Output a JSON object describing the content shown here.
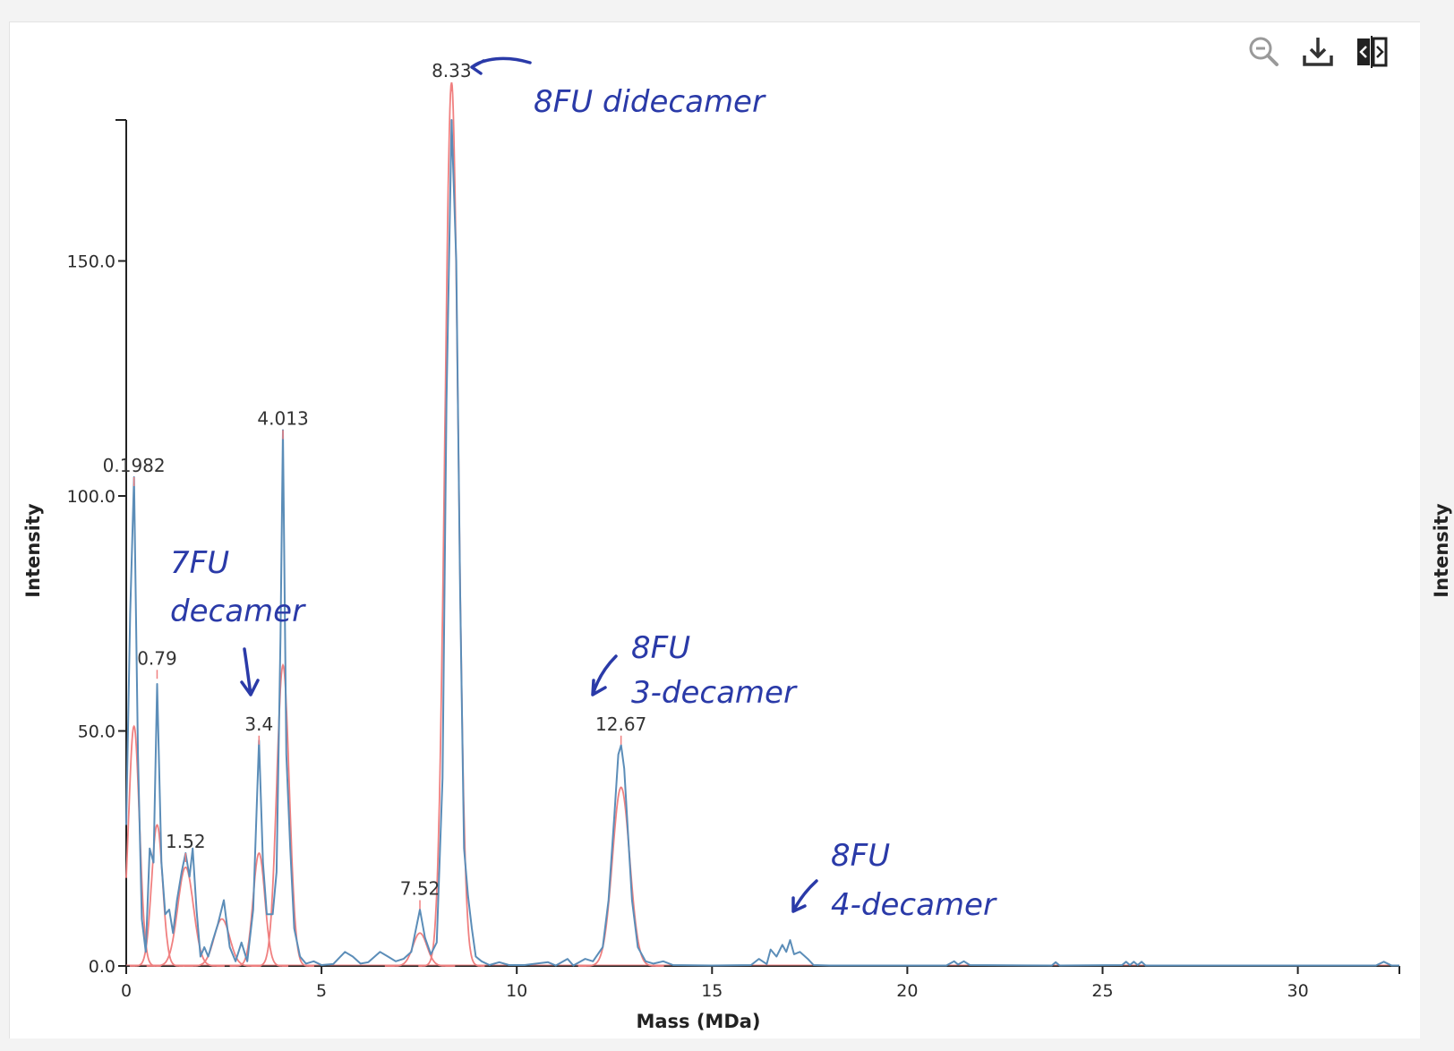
{
  "toolbar": {
    "icons": [
      "zoom-out-icon",
      "download-icon",
      "split-view-icon"
    ]
  },
  "colors": {
    "measured": "#5b8db8",
    "fitted": "#f08080",
    "annotation": "#2a3aa8",
    "axis": "#222222"
  },
  "chart_data": {
    "type": "line",
    "xlabel": "Mass (MDa)",
    "ylabel": "Intensity",
    "right_axis_label": "Intensity",
    "xlim": [
      0,
      32.6
    ],
    "ylim": [
      0,
      180
    ],
    "x_ticks": [
      0,
      5,
      10,
      15,
      20,
      25,
      30
    ],
    "y_ticks": [
      0.0,
      50.0,
      100.0,
      150.0
    ],
    "y_tick_labels": [
      "0.0",
      "50.0",
      "100.0",
      "150.0"
    ],
    "peak_labels": [
      {
        "x": 0.1982,
        "y": 104,
        "text": "0.1982"
      },
      {
        "x": 0.79,
        "y": 63,
        "text": "0.79"
      },
      {
        "x": 1.52,
        "y": 24,
        "text": "1.52"
      },
      {
        "x": 3.4,
        "y": 49,
        "text": "3.4"
      },
      {
        "x": 4.013,
        "y": 114,
        "text": "4.013"
      },
      {
        "x": 7.52,
        "y": 14,
        "text": "7.52"
      },
      {
        "x": 8.33,
        "y": 188,
        "text": "8.33"
      },
      {
        "x": 12.67,
        "y": 49,
        "text": "12.67"
      }
    ],
    "fitted_peaks": [
      {
        "center": 0.1982,
        "height": 51,
        "sigma": 0.14
      },
      {
        "center": 0.79,
        "height": 30,
        "sigma": 0.14
      },
      {
        "center": 1.52,
        "height": 21,
        "sigma": 0.2
      },
      {
        "center": 2.45,
        "height": 10,
        "sigma": 0.2
      },
      {
        "center": 3.4,
        "height": 24,
        "sigma": 0.15
      },
      {
        "center": 4.013,
        "height": 64,
        "sigma": 0.16
      },
      {
        "center": 7.52,
        "height": 7,
        "sigma": 0.18
      },
      {
        "center": 8.33,
        "height": 188,
        "sigma": 0.17
      },
      {
        "center": 12.67,
        "height": 38,
        "sigma": 0.22
      }
    ],
    "series": [
      {
        "name": "",
        "points": [
          [
            0,
            30
          ],
          [
            0.1,
            75
          ],
          [
            0.2,
            104
          ],
          [
            0.3,
            45
          ],
          [
            0.4,
            10
          ],
          [
            0.5,
            3
          ],
          [
            0.6,
            25
          ],
          [
            0.7,
            22
          ],
          [
            0.79,
            60
          ],
          [
            0.9,
            22
          ],
          [
            1.0,
            11
          ],
          [
            1.1,
            12
          ],
          [
            1.2,
            7
          ],
          [
            1.3,
            14
          ],
          [
            1.42,
            20
          ],
          [
            1.52,
            24
          ],
          [
            1.62,
            19
          ],
          [
            1.7,
            25
          ],
          [
            1.8,
            12
          ],
          [
            1.9,
            2
          ],
          [
            2.0,
            4
          ],
          [
            2.1,
            2
          ],
          [
            2.2,
            5
          ],
          [
            2.35,
            9
          ],
          [
            2.5,
            14
          ],
          [
            2.65,
            4
          ],
          [
            2.8,
            1
          ],
          [
            2.95,
            5
          ],
          [
            3.1,
            1
          ],
          [
            3.25,
            12
          ],
          [
            3.4,
            48
          ],
          [
            3.5,
            22
          ],
          [
            3.6,
            11
          ],
          [
            3.75,
            11
          ],
          [
            3.85,
            20
          ],
          [
            3.95,
            70
          ],
          [
            4.013,
            114
          ],
          [
            4.1,
            45
          ],
          [
            4.2,
            25
          ],
          [
            4.3,
            8
          ],
          [
            4.45,
            2
          ],
          [
            4.6,
            0.5
          ],
          [
            4.8,
            1
          ],
          [
            5.0,
            0.2
          ],
          [
            5.3,
            0.4
          ],
          [
            5.6,
            3
          ],
          [
            5.8,
            2
          ],
          [
            6.0,
            0.5
          ],
          [
            6.2,
            0.8
          ],
          [
            6.5,
            3
          ],
          [
            6.7,
            2
          ],
          [
            6.9,
            1
          ],
          [
            7.1,
            1.5
          ],
          [
            7.3,
            3
          ],
          [
            7.52,
            12
          ],
          [
            7.65,
            6
          ],
          [
            7.8,
            2.5
          ],
          [
            7.95,
            5
          ],
          [
            8.1,
            40
          ],
          [
            8.2,
            120
          ],
          [
            8.33,
            181
          ],
          [
            8.45,
            150
          ],
          [
            8.55,
            80
          ],
          [
            8.65,
            25
          ],
          [
            8.75,
            15
          ],
          [
            8.85,
            8
          ],
          [
            8.95,
            2
          ],
          [
            9.1,
            1
          ],
          [
            9.3,
            0.2
          ],
          [
            9.55,
            0.8
          ],
          [
            9.8,
            0.2
          ],
          [
            10.2,
            0.2
          ],
          [
            10.8,
            0.8
          ],
          [
            11.0,
            0.1
          ],
          [
            11.3,
            1.5
          ],
          [
            11.45,
            0.1
          ],
          [
            11.75,
            1.5
          ],
          [
            11.95,
            1
          ],
          [
            12.2,
            4
          ],
          [
            12.35,
            14
          ],
          [
            12.5,
            32
          ],
          [
            12.6,
            45
          ],
          [
            12.67,
            47
          ],
          [
            12.75,
            42
          ],
          [
            12.85,
            28
          ],
          [
            12.95,
            14
          ],
          [
            13.1,
            4
          ],
          [
            13.3,
            1
          ],
          [
            13.5,
            0.5
          ],
          [
            13.75,
            1
          ],
          [
            14.0,
            0.2
          ],
          [
            15.0,
            0.1
          ],
          [
            16.0,
            0.2
          ],
          [
            16.2,
            1.5
          ],
          [
            16.4,
            0.4
          ],
          [
            16.5,
            3.5
          ],
          [
            16.65,
            2
          ],
          [
            16.8,
            4.5
          ],
          [
            16.9,
            3
          ],
          [
            17.0,
            5.5
          ],
          [
            17.1,
            2.5
          ],
          [
            17.25,
            3
          ],
          [
            17.45,
            1.5
          ],
          [
            17.6,
            0.2
          ],
          [
            18.0,
            0.1
          ],
          [
            19.0,
            0.1
          ],
          [
            21.0,
            0.1
          ],
          [
            21.2,
            1
          ],
          [
            21.3,
            0.3
          ],
          [
            21.45,
            1
          ],
          [
            21.6,
            0.2
          ],
          [
            23.7,
            0.1
          ],
          [
            23.8,
            0.8
          ],
          [
            23.9,
            0.1
          ],
          [
            25.5,
            0.2
          ],
          [
            25.6,
            0.9
          ],
          [
            25.7,
            0.2
          ],
          [
            25.8,
            0.9
          ],
          [
            25.9,
            0.2
          ],
          [
            26.0,
            0.9
          ],
          [
            26.1,
            0.1
          ],
          [
            30.0,
            0.1
          ],
          [
            32.0,
            0.1
          ],
          [
            32.2,
            0.9
          ],
          [
            32.4,
            0.1
          ],
          [
            32.6,
            0.1
          ]
        ]
      }
    ],
    "annotations": [
      {
        "text": "8FU didecamer",
        "lines": [
          "8FU didecamer"
        ]
      },
      {
        "text": "7FU decamer",
        "lines": [
          "7FU",
          "decamer"
        ]
      },
      {
        "text": "8FU 3-decamer",
        "lines": [
          "8FU",
          "3-decamer"
        ]
      },
      {
        "text": "8FU 4-decamer",
        "lines": [
          "8FU",
          "4-decamer"
        ]
      }
    ]
  }
}
